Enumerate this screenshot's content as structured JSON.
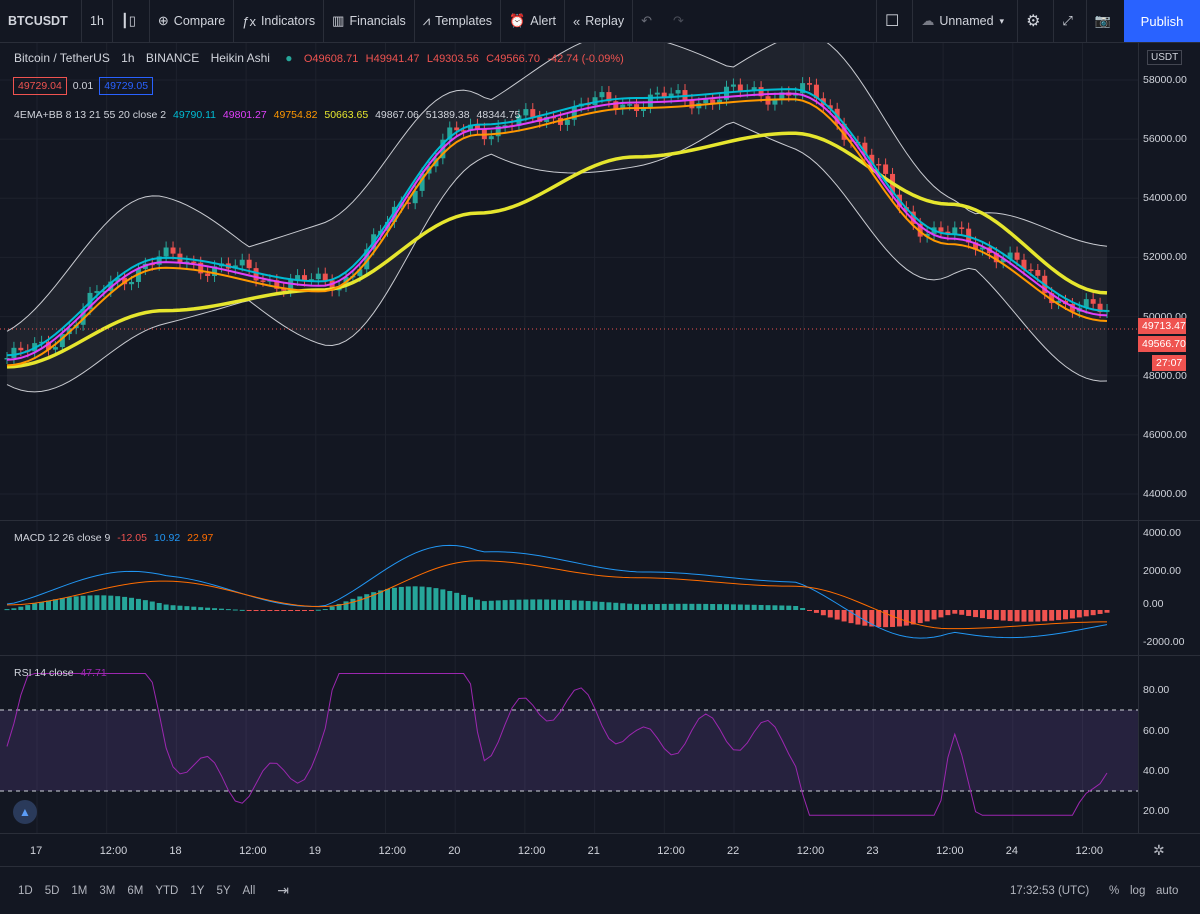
{
  "toolbar": {
    "symbol": "BTCUSDT",
    "interval": "1h",
    "compare": "Compare",
    "indicators": "Indicators",
    "financials": "Financials",
    "templates": "Templates",
    "alert": "Alert",
    "replay": "Replay",
    "layout_name": "Unnamed",
    "publish": "Publish"
  },
  "legend": {
    "title": "Bitcoin / TetherUS",
    "interval": "1h",
    "exchange": "BINANCE",
    "style": "Heikin Ashi",
    "open": "O49608.71",
    "high": "H49941.47",
    "low": "L49303.56",
    "close": "C49566.70",
    "change": "-42.74 (-0.09%)",
    "bid": "49729.04",
    "spread": "0.01",
    "ask": "49729.05",
    "ind_name": "4EMA+BB 8 13 21 55 20 close 2",
    "ind_v1": "49790.11",
    "ind_v2": "49801.27",
    "ind_v3": "49754.82",
    "ind_v4": "50663.65",
    "ind_v5": "49867.06",
    "ind_v6": "51389.38",
    "ind_v7": "48344.75"
  },
  "macd": {
    "name": "MACD 12 26 close 9",
    "v1": "-12.05",
    "v2": "10.92",
    "v3": "22.97"
  },
  "rsi": {
    "name": "RSI 14 close",
    "value": "47.71"
  },
  "price_axis": {
    "currency": "USDT",
    "labels": [
      "58000.00",
      "56000.00",
      "54000.00",
      "52000.00",
      "50000.00",
      "48000.00",
      "46000.00",
      "44000.00"
    ],
    "tag_high": "49713.47",
    "tag_last": "49566.70",
    "tag_countdown": "27:07"
  },
  "macd_axis": [
    "4000.00",
    "2000.00",
    "0.00",
    "-2000.00"
  ],
  "rsi_axis": [
    "80.00",
    "60.00",
    "40.00",
    "20.00"
  ],
  "time_axis": [
    "17",
    "12:00",
    "18",
    "12:00",
    "19",
    "12:00",
    "20",
    "12:00",
    "21",
    "12:00",
    "22",
    "12:00",
    "23",
    "12:00",
    "24",
    "12:00"
  ],
  "bottom": {
    "ranges": [
      "1D",
      "5D",
      "1M",
      "3M",
      "6M",
      "YTD",
      "1Y",
      "5Y",
      "All"
    ],
    "clock": "17:32:53 (UTC)",
    "percent": "%",
    "log": "log",
    "auto": "auto"
  },
  "chart_data": {
    "type": "line",
    "xlabel": "",
    "ylabel": "",
    "x": [
      "17",
      "18",
      "19",
      "20",
      "21",
      "22",
      "23",
      "24"
    ],
    "series": [
      {
        "values": [
          48600,
          51900,
          51100,
          56400,
          57300,
          57600,
          52700,
          50100
        ]
      },
      {
        "values": [
          48300,
          50200,
          50900,
          53500,
          55400,
          56200,
          53800,
          50800
        ]
      }
    ],
    "ylim": [
      44000,
      58500
    ]
  },
  "colors": {
    "background": "#131722",
    "up": "#26a69a",
    "down": "#ef5350",
    "ema_fast": "#00bcd4",
    "ema_mid": "#e040fb",
    "ema_slow": "#ff9800",
    "ema_long": "#e6e62e",
    "bb": "#c9cbd1",
    "macd_line": "#2196f3",
    "signal_line": "#ff6d00",
    "rsi_line": "#9c27b0",
    "accent": "#2962ff"
  }
}
